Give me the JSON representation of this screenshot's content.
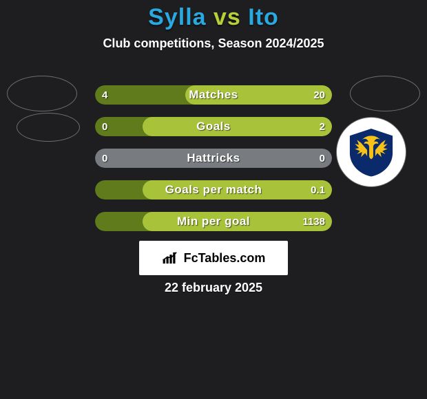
{
  "title_parts": {
    "p1": "Sylla",
    "vs": "vs",
    "p2": "Ito"
  },
  "title_colors": {
    "p1": "#2aa8e0",
    "vs": "#b8cf3a",
    "p2": "#2aa8e0"
  },
  "subtitle": "Club competitions, Season 2024/2025",
  "avatar_border": "#6c6d72",
  "background": "#1e1e20",
  "club_badge": {
    "bg": "#ffffff",
    "shield": "#0b2a6b",
    "accent": "#f6c21a"
  },
  "bars_common": {
    "height": 28,
    "radius": 14,
    "label_fontsize": 17,
    "value_fontsize": 15,
    "text_color": "#ffffff"
  },
  "rows": [
    {
      "label": "Matches",
      "left": "4",
      "right": "20",
      "left_color": "#5f7b1c",
      "right_color": "#a8c23a",
      "right_width_pct": 62
    },
    {
      "label": "Goals",
      "left": "0",
      "right": "2",
      "left_color": "#5f7b1c",
      "right_color": "#a8c23a",
      "right_width_pct": 80
    },
    {
      "label": "Hattricks",
      "left": "0",
      "right": "0",
      "left_color": "#787b7f",
      "right_color": "#787b7f",
      "right_width_pct": 0
    },
    {
      "label": "Goals per match",
      "left": "",
      "right": "0.1",
      "left_color": "#5f7b1c",
      "right_color": "#a8c23a",
      "right_width_pct": 80
    },
    {
      "label": "Min per goal",
      "left": "",
      "right": "1138",
      "left_color": "#5f7b1c",
      "right_color": "#a8c23a",
      "right_width_pct": 80
    }
  ],
  "brand": "FcTables.com",
  "date": "22 february 2025"
}
